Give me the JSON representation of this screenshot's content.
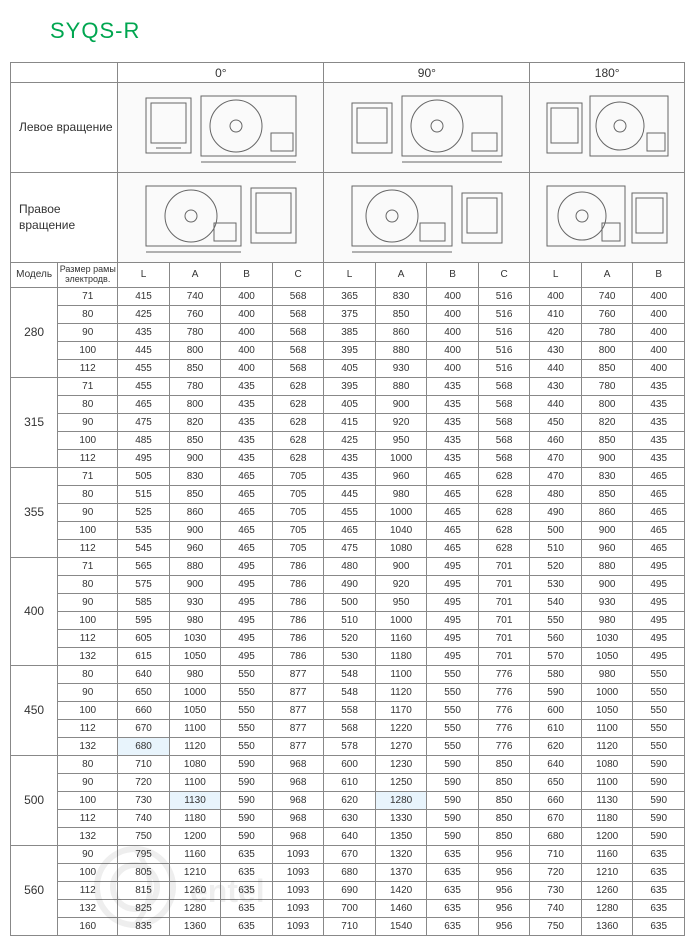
{
  "title": "SYQS-R",
  "angles": [
    "0°",
    "90°",
    "180°"
  ],
  "rotation_left": "Левое вращение",
  "rotation_right": "Правое вращение",
  "model_header": "Модель",
  "frame_header": "Размер рамы электродв.",
  "col_letters_full": [
    "L",
    "A",
    "B",
    "C"
  ],
  "col_letters_180": [
    "L",
    "A",
    "B"
  ],
  "colors": {
    "title": "#00a650",
    "border": "#888888",
    "text": "#333333",
    "highlight": "#e8f4fc"
  },
  "highlights": [
    {
      "model": "500",
      "frame": "100",
      "cols": [
        "0_A",
        "90_A"
      ]
    },
    {
      "model": "450",
      "frame": "132",
      "cols": [
        "0_L"
      ]
    }
  ],
  "groups": [
    {
      "model": "280",
      "rows": [
        {
          "frame": "71",
          "v": [
            415,
            740,
            400,
            568,
            365,
            830,
            400,
            516,
            400,
            740,
            400
          ]
        },
        {
          "frame": "80",
          "v": [
            425,
            760,
            400,
            568,
            375,
            850,
            400,
            516,
            410,
            760,
            400
          ]
        },
        {
          "frame": "90",
          "v": [
            435,
            780,
            400,
            568,
            385,
            860,
            400,
            516,
            420,
            780,
            400
          ]
        },
        {
          "frame": "100",
          "v": [
            445,
            800,
            400,
            568,
            395,
            880,
            400,
            516,
            430,
            800,
            400
          ]
        },
        {
          "frame": "112",
          "v": [
            455,
            850,
            400,
            568,
            405,
            930,
            400,
            516,
            440,
            850,
            400
          ]
        }
      ]
    },
    {
      "model": "315",
      "rows": [
        {
          "frame": "71",
          "v": [
            455,
            780,
            435,
            628,
            395,
            880,
            435,
            568,
            430,
            780,
            435
          ]
        },
        {
          "frame": "80",
          "v": [
            465,
            800,
            435,
            628,
            405,
            900,
            435,
            568,
            440,
            800,
            435
          ]
        },
        {
          "frame": "90",
          "v": [
            475,
            820,
            435,
            628,
            415,
            920,
            435,
            568,
            450,
            820,
            435
          ]
        },
        {
          "frame": "100",
          "v": [
            485,
            850,
            435,
            628,
            425,
            950,
            435,
            568,
            460,
            850,
            435
          ]
        },
        {
          "frame": "112",
          "v": [
            495,
            900,
            435,
            628,
            435,
            1000,
            435,
            568,
            470,
            900,
            435
          ]
        }
      ]
    },
    {
      "model": "355",
      "rows": [
        {
          "frame": "71",
          "v": [
            505,
            830,
            465,
            705,
            435,
            960,
            465,
            628,
            470,
            830,
            465
          ]
        },
        {
          "frame": "80",
          "v": [
            515,
            850,
            465,
            705,
            445,
            980,
            465,
            628,
            480,
            850,
            465
          ]
        },
        {
          "frame": "90",
          "v": [
            525,
            860,
            465,
            705,
            455,
            1000,
            465,
            628,
            490,
            860,
            465
          ]
        },
        {
          "frame": "100",
          "v": [
            535,
            900,
            465,
            705,
            465,
            1040,
            465,
            628,
            500,
            900,
            465
          ]
        },
        {
          "frame": "112",
          "v": [
            545,
            960,
            465,
            705,
            475,
            1080,
            465,
            628,
            510,
            960,
            465
          ]
        }
      ]
    },
    {
      "model": "400",
      "rows": [
        {
          "frame": "71",
          "v": [
            565,
            880,
            495,
            786,
            480,
            900,
            495,
            701,
            520,
            880,
            495
          ]
        },
        {
          "frame": "80",
          "v": [
            575,
            900,
            495,
            786,
            490,
            920,
            495,
            701,
            530,
            900,
            495
          ]
        },
        {
          "frame": "90",
          "v": [
            585,
            930,
            495,
            786,
            500,
            950,
            495,
            701,
            540,
            930,
            495
          ]
        },
        {
          "frame": "100",
          "v": [
            595,
            980,
            495,
            786,
            510,
            1000,
            495,
            701,
            550,
            980,
            495
          ]
        },
        {
          "frame": "112",
          "v": [
            605,
            1030,
            495,
            786,
            520,
            1160,
            495,
            701,
            560,
            1030,
            495
          ]
        },
        {
          "frame": "132",
          "v": [
            615,
            1050,
            495,
            786,
            530,
            1180,
            495,
            701,
            570,
            1050,
            495
          ]
        }
      ]
    },
    {
      "model": "450",
      "rows": [
        {
          "frame": "80",
          "v": [
            640,
            980,
            550,
            877,
            548,
            1100,
            550,
            776,
            580,
            980,
            550
          ]
        },
        {
          "frame": "90",
          "v": [
            650,
            1000,
            550,
            877,
            548,
            1120,
            550,
            776,
            590,
            1000,
            550
          ]
        },
        {
          "frame": "100",
          "v": [
            660,
            1050,
            550,
            877,
            558,
            1170,
            550,
            776,
            600,
            1050,
            550
          ]
        },
        {
          "frame": "112",
          "v": [
            670,
            1100,
            550,
            877,
            568,
            1220,
            550,
            776,
            610,
            1100,
            550
          ]
        },
        {
          "frame": "132",
          "v": [
            680,
            1120,
            550,
            877,
            578,
            1270,
            550,
            776,
            620,
            1120,
            550
          ]
        }
      ]
    },
    {
      "model": "500",
      "rows": [
        {
          "frame": "80",
          "v": [
            710,
            1080,
            590,
            968,
            600,
            1230,
            590,
            850,
            640,
            1080,
            590
          ]
        },
        {
          "frame": "90",
          "v": [
            720,
            1100,
            590,
            968,
            610,
            1250,
            590,
            850,
            650,
            1100,
            590
          ]
        },
        {
          "frame": "100",
          "v": [
            730,
            1130,
            590,
            968,
            620,
            1280,
            590,
            850,
            660,
            1130,
            590
          ]
        },
        {
          "frame": "112",
          "v": [
            740,
            1180,
            590,
            968,
            630,
            1330,
            590,
            850,
            670,
            1180,
            590
          ]
        },
        {
          "frame": "132",
          "v": [
            750,
            1200,
            590,
            968,
            640,
            1350,
            590,
            850,
            680,
            1200,
            590
          ]
        }
      ]
    },
    {
      "model": "560",
      "rows": [
        {
          "frame": "90",
          "v": [
            795,
            1160,
            635,
            1093,
            670,
            1320,
            635,
            956,
            710,
            1160,
            635
          ]
        },
        {
          "frame": "100",
          "v": [
            805,
            1210,
            635,
            1093,
            680,
            1370,
            635,
            956,
            720,
            1210,
            635
          ]
        },
        {
          "frame": "112",
          "v": [
            815,
            1260,
            635,
            1093,
            690,
            1420,
            635,
            956,
            730,
            1260,
            635
          ]
        },
        {
          "frame": "132",
          "v": [
            825,
            1280,
            635,
            1093,
            700,
            1460,
            635,
            956,
            740,
            1280,
            635
          ]
        },
        {
          "frame": "160",
          "v": [
            835,
            1360,
            635,
            1093,
            710,
            1540,
            635,
            956,
            750,
            1360,
            635
          ]
        }
      ]
    }
  ]
}
